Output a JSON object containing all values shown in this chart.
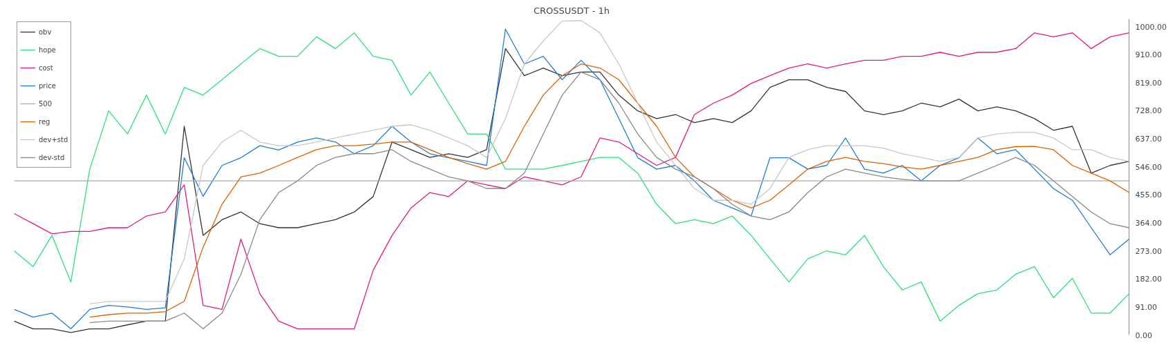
{
  "chart_data": {
    "type": "line",
    "title": "CROSSUSDT - 1h",
    "categories": [
      null,
      null,
      null,
      null,
      null,
      null,
      null,
      null,
      null,
      null,
      null,
      null,
      null,
      null,
      null,
      null,
      null,
      null,
      null,
      null,
      null,
      null,
      null,
      null,
      null,
      null,
      null,
      null,
      null,
      null,
      null,
      null,
      null,
      null,
      null,
      null,
      null,
      null,
      null,
      null,
      null,
      null,
      null,
      null,
      null,
      null,
      null,
      null,
      null,
      null,
      null,
      null,
      null,
      null,
      null,
      null,
      null,
      null,
      null,
      null
    ],
    "series": [
      {
        "name": "obv",
        "color": "#333333",
        "values": [
          45,
          20,
          20,
          8,
          20,
          20,
          33,
          45,
          45,
          677,
          323,
          374,
          399,
          361,
          348,
          348,
          361,
          374,
          399,
          449,
          626,
          601,
          576,
          588,
          576,
          601,
          929,
          841,
          866,
          841,
          853,
          853,
          778,
          727,
          702,
          715,
          689,
          702,
          689,
          727,
          803,
          828,
          828,
          803,
          790,
          727,
          715,
          727,
          752,
          740,
          765,
          727,
          740,
          727,
          702,
          664,
          677,
          525,
          550,
          563
        ]
      },
      {
        "name": "hope",
        "color": "#2ee07a",
        "values": [
          273,
          222,
          323,
          172,
          538,
          727,
          652,
          778,
          652,
          803,
          778,
          828,
          879,
          929,
          904,
          904,
          967,
          929,
          980,
          904,
          891,
          778,
          853,
          752,
          652,
          652,
          538,
          538,
          538,
          550,
          563,
          576,
          576,
          525,
          424,
          361,
          374,
          361,
          386,
          323,
          247,
          172,
          247,
          273,
          260,
          323,
          222,
          146,
          172,
          45,
          96,
          134,
          146,
          197,
          222,
          121,
          184,
          71,
          71,
          134
        ]
      },
      {
        "name": "cost",
        "color": "#e6197d",
        "values": [
          394,
          361,
          328,
          336,
          336,
          348,
          348,
          386,
          399,
          487,
          96,
          83,
          311,
          134,
          45,
          20,
          20,
          20,
          20,
          210,
          323,
          412,
          462,
          449,
          500,
          487,
          475,
          513,
          500,
          487,
          513,
          639,
          626,
          588,
          550,
          576,
          715,
          752,
          778,
          816,
          841,
          866,
          879,
          866,
          879,
          891,
          891,
          904,
          904,
          917,
          904,
          917,
          917,
          929,
          980,
          967,
          980,
          929,
          967,
          980
        ]
      },
      {
        "name": "price",
        "color": "#1e7be0",
        "values": [
          83,
          58,
          71,
          20,
          83,
          96,
          91,
          83,
          88,
          575,
          450,
          550,
          575,
          614,
          600,
          626,
          639,
          626,
          588,
          614,
          677,
          626,
          588,
          575,
          563,
          550,
          992,
          879,
          904,
          828,
          891,
          828,
          702,
          575,
          538,
          550,
          500,
          437,
          412,
          386,
          575,
          575,
          538,
          550,
          639,
          538,
          525,
          550,
          500,
          550,
          575,
          639,
          588,
          601,
          538,
          475,
          437,
          348,
          260,
          311
        ]
      },
      {
        "name": "500",
        "color": "#aaaaaa",
        "values": [
          500,
          500,
          500,
          500,
          500,
          500,
          500,
          500,
          500,
          500,
          500,
          500,
          500,
          500,
          500,
          500,
          500,
          500,
          500,
          500,
          500,
          500,
          500,
          500,
          500,
          500,
          500,
          500,
          500,
          500,
          500,
          500,
          500,
          500,
          500,
          500,
          500,
          500,
          500,
          500,
          500,
          500,
          500,
          500,
          500,
          500,
          500,
          500,
          500,
          500,
          500,
          500,
          500,
          500,
          500,
          500,
          500,
          500,
          500,
          500
        ]
      },
      {
        "name": "reg",
        "color": "#e06000",
        "values": [
          null,
          null,
          null,
          null,
          58,
          66,
          71,
          71,
          76,
          109,
          285,
          424,
          513,
          525,
          550,
          576,
          601,
          614,
          614,
          619,
          626,
          626,
          601,
          576,
          556,
          538,
          563,
          677,
          778,
          841,
          879,
          866,
          828,
          752,
          677,
          576,
          513,
          475,
          437,
          412,
          437,
          487,
          538,
          563,
          576,
          563,
          556,
          545,
          538,
          550,
          563,
          576,
          601,
          611,
          612,
          601,
          550,
          525,
          500,
          462
        ]
      },
      {
        "name": "dev+std",
        "color": "#c8c8c8",
        "values": [
          null,
          null,
          null,
          null,
          101,
          109,
          109,
          109,
          109,
          247,
          550,
          626,
          664,
          626,
          614,
          614,
          626,
          639,
          652,
          664,
          677,
          682,
          664,
          639,
          614,
          576,
          702,
          879,
          954,
          1018,
          1020,
          980,
          879,
          752,
          626,
          550,
          475,
          437,
          437,
          424,
          475,
          576,
          601,
          614,
          614,
          614,
          606,
          588,
          576,
          563,
          576,
          639,
          652,
          657,
          657,
          639,
          601,
          601,
          576,
          563
        ]
      },
      {
        "name": "dev-std",
        "color": "#888888",
        "values": [
          null,
          null,
          null,
          null,
          40,
          45,
          45,
          45,
          45,
          71,
          20,
          71,
          197,
          374,
          462,
          500,
          550,
          576,
          588,
          588,
          601,
          563,
          538,
          513,
          500,
          475,
          475,
          525,
          652,
          778,
          853,
          828,
          752,
          652,
          576,
          538,
          513,
          475,
          424,
          386,
          374,
          399,
          462,
          513,
          538,
          525,
          513,
          505,
          500,
          500,
          500,
          525,
          550,
          576,
          550,
          500,
          449,
          399,
          361,
          348
        ]
      }
    ],
    "ylim": [
      0,
      1025
    ],
    "yticks": [
      {
        "value": 0,
        "label": "0.00"
      },
      {
        "value": 91,
        "label": "91.00"
      },
      {
        "value": 182,
        "label": "182.00"
      },
      {
        "value": 273,
        "label": "273.00"
      },
      {
        "value": 364,
        "label": "364.00"
      },
      {
        "value": 455,
        "label": "455.00"
      },
      {
        "value": 546,
        "label": "546.00"
      },
      {
        "value": 637,
        "label": "637.00"
      },
      {
        "value": 728,
        "label": "728.00"
      },
      {
        "value": 819,
        "label": "819.00"
      },
      {
        "value": 910,
        "label": "910.00"
      },
      {
        "value": 1000,
        "label": "1000.00"
      }
    ],
    "tick_labels": "y",
    "grid": false,
    "legend": "top left",
    "marker": "none",
    "line_style": "solid"
  }
}
